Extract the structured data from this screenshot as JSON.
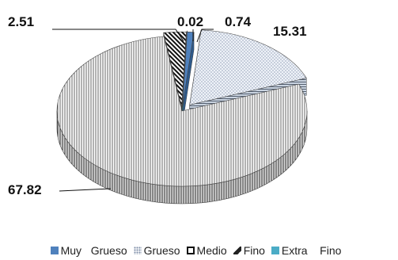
{
  "chart_data": {
    "type": "pie",
    "categories": [
      "Muy Grueso",
      "Grueso",
      "Medio",
      "Fino",
      "Extra Fino"
    ],
    "values": [
      0.74,
      15.31,
      67.82,
      2.51,
      0.02
    ],
    "data_labels": [
      "0.74",
      "15.31",
      "67.82",
      "2.51",
      "0.02"
    ],
    "style": "3D exploded pie",
    "legend_position": "bottom",
    "colors": {
      "Muy Grueso": "#4f81bd",
      "Grueso": "#dce6f2",
      "Medio": "#ffffff",
      "Fino": "#1f1f1f",
      "Extra Fino": "#4bacc6"
    }
  },
  "legend": [
    {
      "label": "Muy   Grueso"
    },
    {
      "label": "Grueso"
    },
    {
      "label": "Medio"
    },
    {
      "label": "Fino"
    },
    {
      "label": "Extra    Fino"
    }
  ]
}
